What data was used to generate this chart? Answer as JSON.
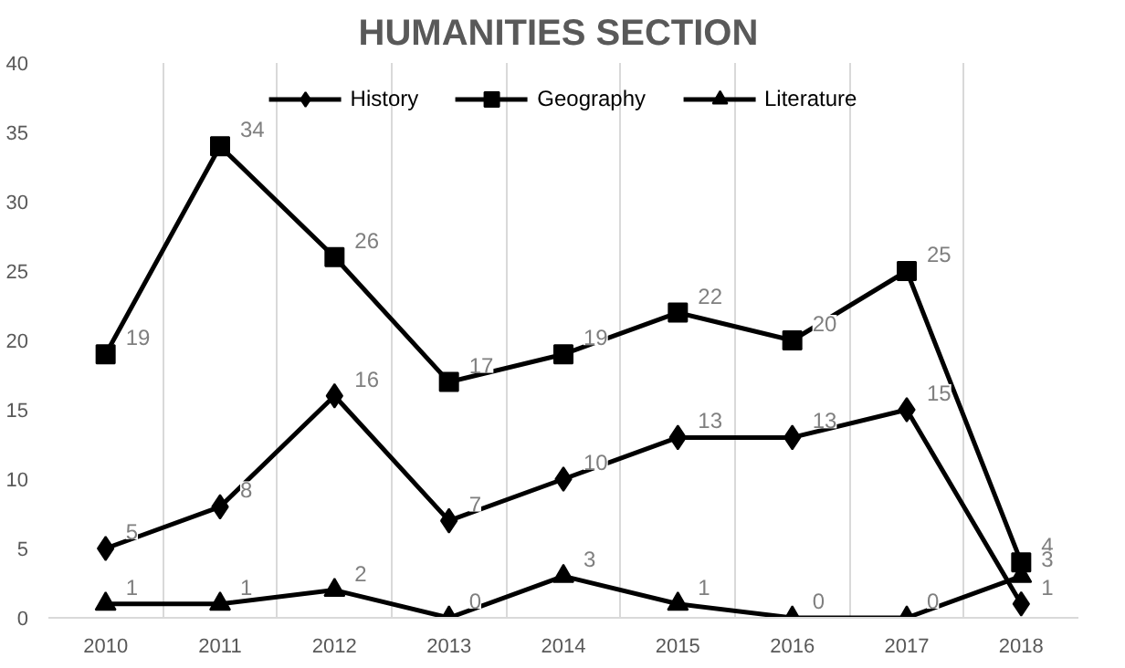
{
  "chart_data": {
    "type": "line",
    "title": "HUMANITIES  SECTION",
    "categories": [
      "2010",
      "2011",
      "2012",
      "2013",
      "2014",
      "2015",
      "2016",
      "2017",
      "2018"
    ],
    "series": [
      {
        "name": "History",
        "color": "#000000",
        "marker": "diamond",
        "values": [
          5,
          8,
          16,
          7,
          10,
          13,
          13,
          15,
          1
        ]
      },
      {
        "name": "Geography",
        "color": "#000000",
        "marker": "square",
        "values": [
          19,
          34,
          26,
          17,
          19,
          22,
          20,
          25,
          4
        ]
      },
      {
        "name": "Literature",
        "color": "#000000",
        "marker": "triangle",
        "values": [
          1,
          1,
          2,
          0,
          3,
          1,
          0,
          0,
          3
        ]
      }
    ],
    "ylim": [
      0,
      40
    ],
    "yticks": [
      0,
      5,
      10,
      15,
      20,
      25,
      30,
      35,
      40
    ],
    "grid": "x",
    "legend": "top",
    "data_labels": true,
    "line_style": "solid"
  }
}
